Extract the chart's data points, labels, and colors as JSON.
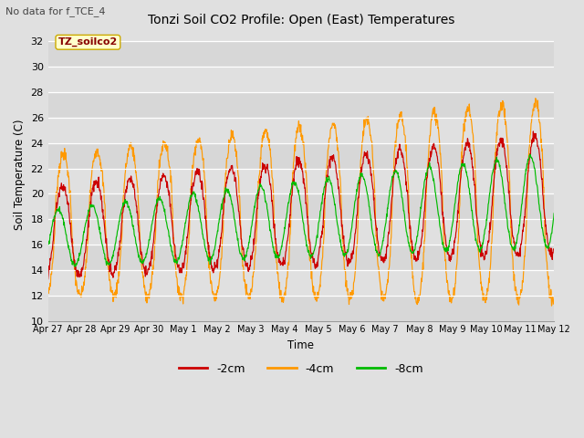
{
  "title": "Tonzi Soil CO2 Profile: Open (East) Temperatures",
  "subtitle": "No data for f_TCE_4",
  "ylabel": "Soil Temperature (C)",
  "xlabel": "Time",
  "yticks": [
    10,
    12,
    14,
    16,
    18,
    20,
    22,
    24,
    26,
    28,
    30,
    32
  ],
  "ylim": [
    10,
    33
  ],
  "xtick_labels": [
    "Apr 27",
    "Apr 28",
    "Apr 29",
    "Apr 30",
    "May 1",
    "May 2",
    "May 3",
    "May 4",
    "May 5",
    "May 6",
    "May 7",
    "May 8",
    "May 9",
    "May 10",
    "May 11",
    "May 12"
  ],
  "color_2cm": "#cc0000",
  "color_4cm": "#ff9900",
  "color_8cm": "#00bb00",
  "legend_label_2cm": "-2cm",
  "legend_label_4cm": "-4cm",
  "legend_label_8cm": "-8cm",
  "inset_label": "TZ_soilco2",
  "bg_color": "#e0e0e0",
  "grid_color": "#ffffff",
  "n_days": 15
}
